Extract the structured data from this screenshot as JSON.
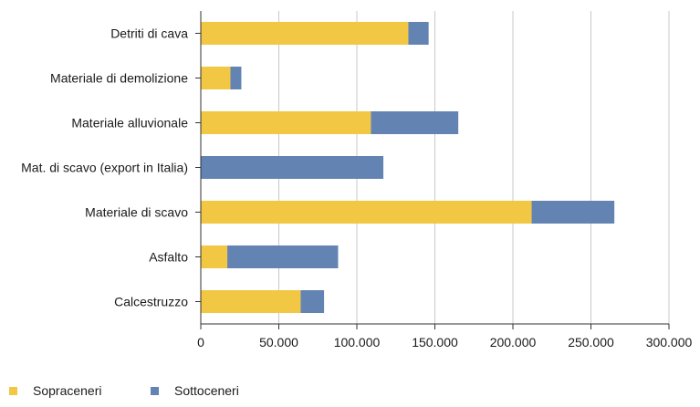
{
  "chart_data": {
    "type": "bar",
    "orientation": "horizontal",
    "stacked": true,
    "categories": [
      "Detriti di cava",
      "Materiale di demolizione",
      "Materiale alluvionale",
      "Mat. di scavo (export in Italia)",
      "Materiale di scavo",
      "Asfalto",
      "Calcestruzzo"
    ],
    "series": [
      {
        "name": "Sopraceneri",
        "color": "#f2c744",
        "values": [
          133000,
          19000,
          109000,
          0,
          212000,
          17000,
          64000
        ]
      },
      {
        "name": "Sottoceneri",
        "color": "#6384b3",
        "values": [
          13000,
          7000,
          56000,
          117000,
          53000,
          71000,
          15000
        ]
      }
    ],
    "xlim": [
      0,
      300000
    ],
    "x_ticks": [
      0,
      50000,
      100000,
      150000,
      200000,
      250000,
      300000
    ],
    "x_tick_labels": [
      "0",
      "50.000",
      "100.000",
      "150.000",
      "200.000",
      "250.000",
      "300.000"
    ],
    "grid": "vertical",
    "legend_position": "bottom-left",
    "title": "",
    "xlabel": "",
    "ylabel": ""
  }
}
